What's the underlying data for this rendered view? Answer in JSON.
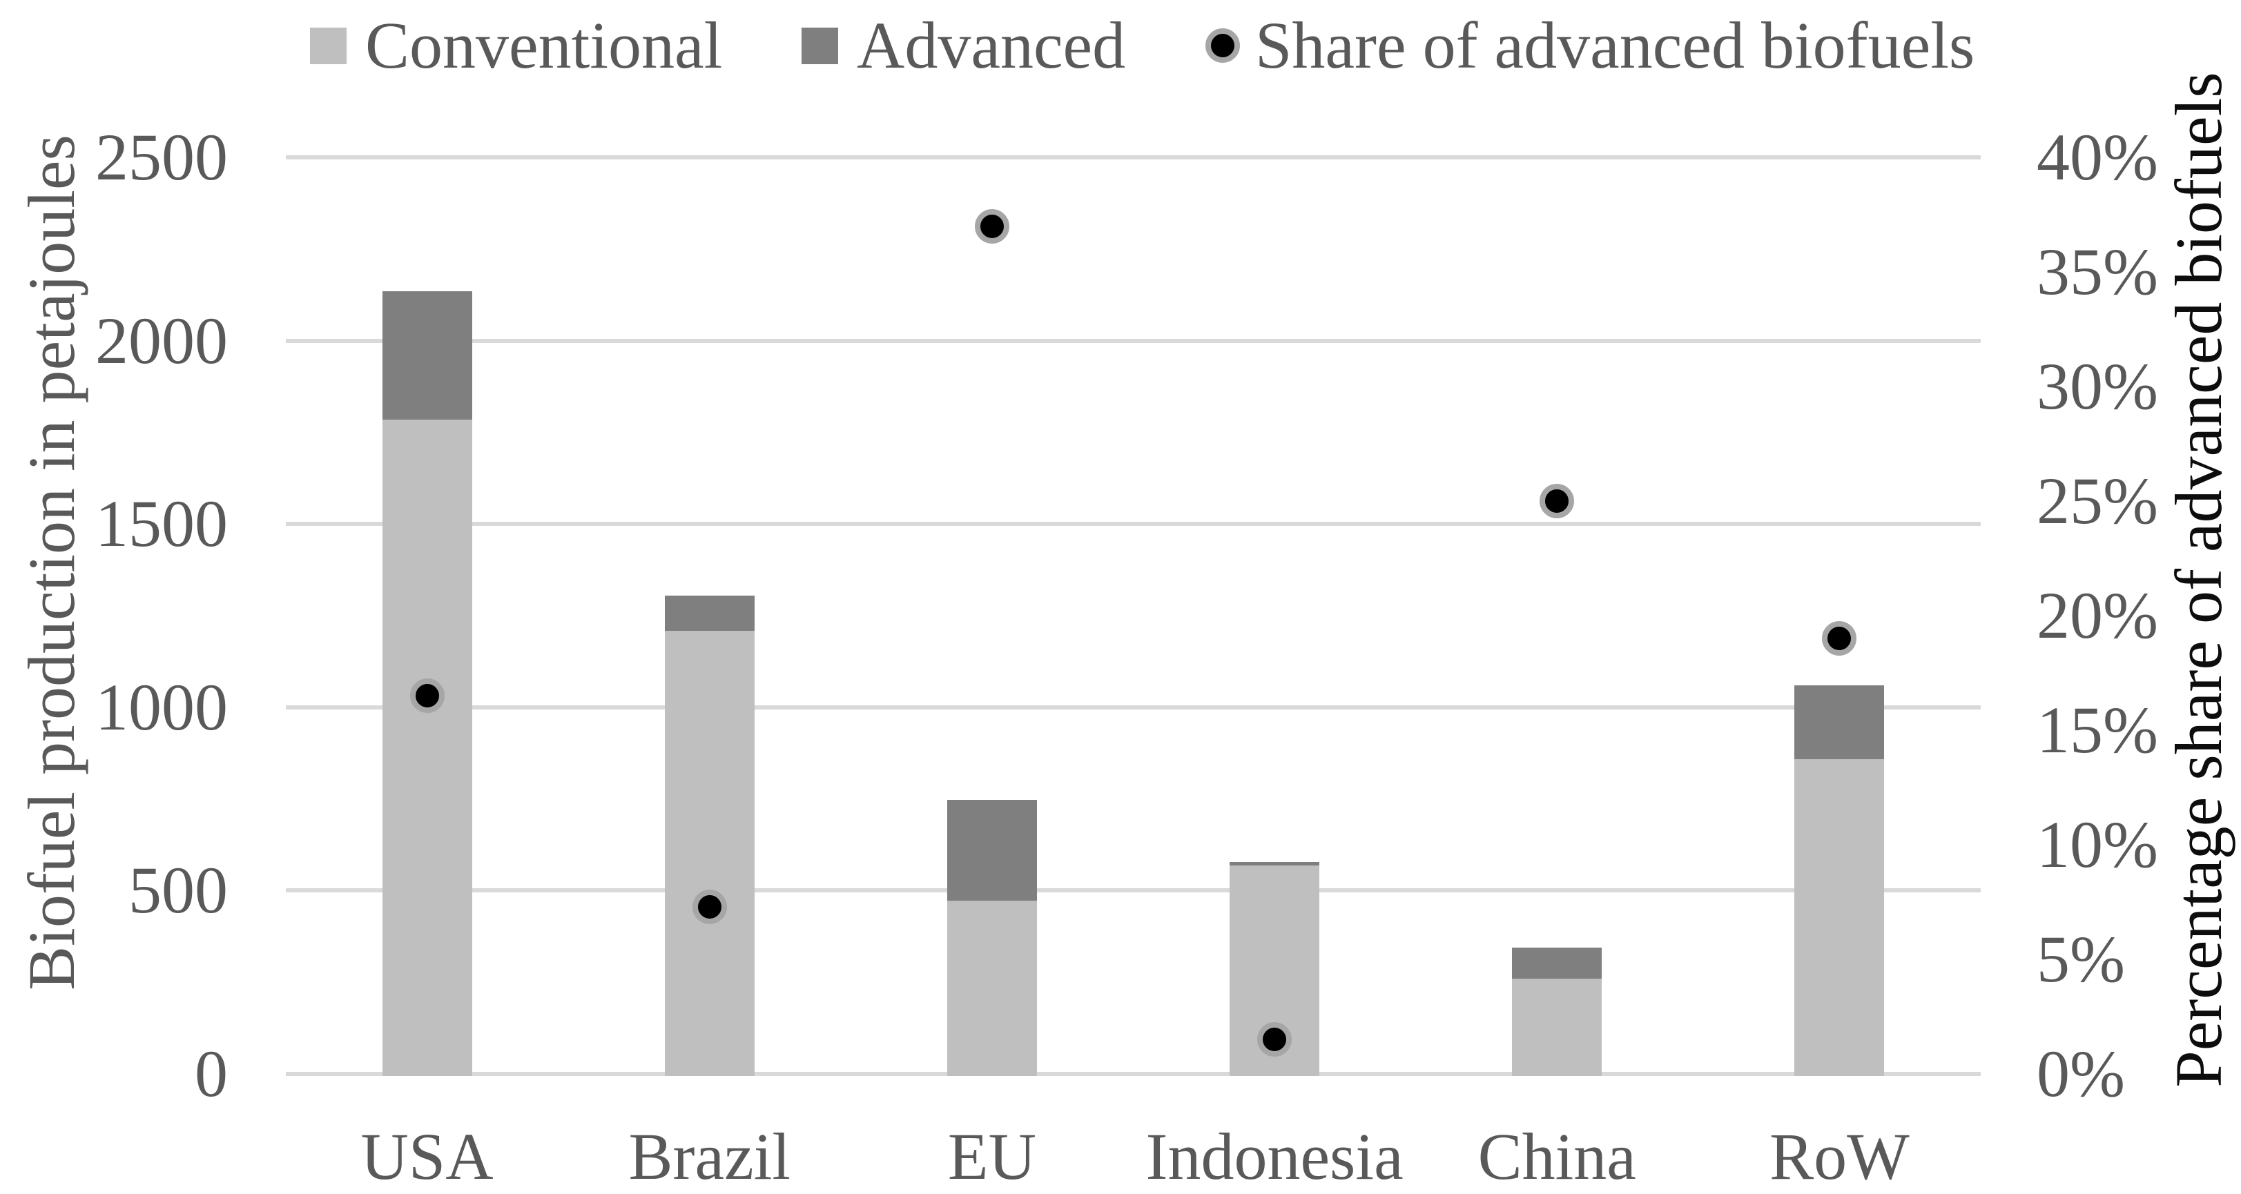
{
  "chart_data": {
    "type": "bar",
    "subtype": "stacked-bars-with-scatter-overlay",
    "title": "",
    "categories": [
      "USA",
      "Brazil",
      "EU",
      "Indonesia",
      "China",
      "RoW"
    ],
    "series": [
      {
        "name": "Conventional",
        "kind": "bar-stack",
        "axis": "left",
        "color": "#BFBFBF",
        "values": [
          1790,
          1215,
          478,
          574,
          265,
          865
        ]
      },
      {
        "name": "Advanced",
        "kind": "bar-stack",
        "axis": "left",
        "color": "#7F7F7F",
        "values": [
          350,
          95,
          275,
          9,
          85,
          200
        ]
      },
      {
        "name": "Share of advanced biofuels",
        "kind": "scatter",
        "axis": "right",
        "unit": "%",
        "color": "#000000",
        "ring_color": "#A6A6A6",
        "values": [
          16.5,
          7.3,
          37,
          1.5,
          25,
          19
        ]
      }
    ],
    "stacked_totals": [
      2140,
      1310,
      753,
      583,
      350,
      1065
    ],
    "left_axis": {
      "label": "Biofuel production in petajoules",
      "min": 0,
      "max": 2500,
      "step": 500,
      "tick_labels": [
        "0",
        "500",
        "1000",
        "1500",
        "2000",
        "2500"
      ]
    },
    "right_axis": {
      "label": "Percentage share of advanced biofuels",
      "min": 0,
      "max": 40,
      "step": 5,
      "tick_labels": [
        "0%",
        "5%",
        "10%",
        "15%",
        "20%",
        "25%",
        "30%",
        "35%",
        "40%"
      ]
    },
    "x_axis": {
      "tick_labels": [
        "USA",
        "Brazil",
        "EU",
        "Indonesia",
        "China",
        "RoW"
      ]
    },
    "legend_position": "top",
    "grid": "horizontal",
    "colors": {
      "gridline": "#D9D9D9",
      "tick_text": "#595959",
      "left_axis_title": "#595959",
      "right_axis_title": "#0D0D0D",
      "background": "#FFFFFF"
    }
  }
}
